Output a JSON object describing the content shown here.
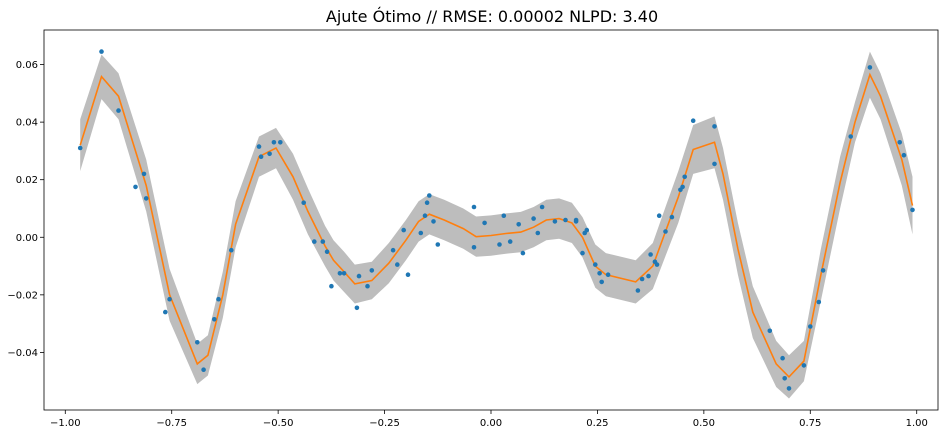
{
  "chart_data": {
    "type": "line",
    "title": "Ajute Ótimo // RMSE: 0.00002 NLPD: 3.40",
    "xlabel": "",
    "ylabel": "",
    "xlim": [
      -1.05,
      1.05
    ],
    "ylim": [
      -0.06,
      0.072
    ],
    "grid": false,
    "x_ticks": [
      -1.0,
      -0.75,
      -0.5,
      -0.25,
      0.0,
      0.25,
      0.5,
      0.75,
      1.0
    ],
    "x_tick_labels": [
      "−1.00",
      "−0.75",
      "−0.50",
      "−0.25",
      "0.00",
      "0.25",
      "0.50",
      "0.75",
      "1.00"
    ],
    "y_ticks": [
      -0.04,
      -0.02,
      0.0,
      0.02,
      0.04,
      0.06
    ],
    "y_tick_labels": [
      "−0.04",
      "−0.02",
      "0.00",
      "0.02",
      "0.04",
      "0.06"
    ],
    "colors": {
      "mean": "#ff7f0e",
      "band": "#bdbdbd",
      "points": "#1f77b4"
    },
    "mean_curve": {
      "x": [
        -0.965,
        -0.915,
        -0.875,
        -0.81,
        -0.755,
        -0.69,
        -0.665,
        -0.63,
        -0.6,
        -0.545,
        -0.505,
        -0.465,
        -0.43,
        -0.39,
        -0.37,
        -0.345,
        -0.32,
        -0.28,
        -0.24,
        -0.2,
        -0.17,
        -0.145,
        -0.11,
        -0.065,
        -0.035,
        0.0,
        0.035,
        0.07,
        0.1,
        0.13,
        0.16,
        0.19,
        0.215,
        0.245,
        0.27,
        0.34,
        0.38,
        0.41,
        0.44,
        0.475,
        0.525,
        0.545,
        0.58,
        0.615,
        0.67,
        0.7,
        0.735,
        0.775,
        0.82,
        0.855,
        0.89,
        0.915,
        0.965,
        0.99
      ],
      "y": [
        0.032,
        0.0558,
        0.049,
        0.018,
        -0.02,
        -0.044,
        -0.041,
        -0.02,
        0.0045,
        0.028,
        0.031,
        0.021,
        0.009,
        -0.003,
        -0.008,
        -0.012,
        -0.0162,
        -0.015,
        -0.009,
        -0.001,
        0.0055,
        0.008,
        0.006,
        0.003,
        0.0002,
        0.0006,
        0.0013,
        0.0018,
        0.0035,
        0.006,
        0.0065,
        0.005,
        0.0,
        -0.01,
        -0.013,
        -0.0155,
        -0.01,
        0.002,
        0.014,
        0.0305,
        0.033,
        0.022,
        -0.004,
        -0.026,
        -0.044,
        -0.0485,
        -0.043,
        -0.013,
        0.019,
        0.04,
        0.0565,
        0.049,
        0.027,
        0.011
      ]
    },
    "confidence_band": {
      "upper": [
        0.041,
        0.0635,
        0.057,
        0.027,
        -0.011,
        -0.037,
        -0.034,
        -0.012,
        0.0125,
        0.035,
        0.038,
        0.029,
        0.017,
        0.004,
        -0.001,
        -0.005,
        -0.0095,
        -0.0085,
        -0.002,
        0.006,
        0.0125,
        0.015,
        0.013,
        0.01,
        0.0072,
        0.0076,
        0.0083,
        0.0088,
        0.0105,
        0.013,
        0.0135,
        0.012,
        0.007,
        -0.0025,
        -0.0055,
        -0.008,
        -0.002,
        0.0105,
        0.023,
        0.039,
        0.042,
        0.031,
        0.005,
        -0.017,
        -0.036,
        -0.041,
        -0.036,
        -0.004,
        0.028,
        0.047,
        0.0645,
        0.057,
        0.036,
        0.021
      ],
      "lower": [
        0.023,
        0.048,
        0.041,
        0.009,
        -0.029,
        -0.051,
        -0.048,
        -0.028,
        -0.0035,
        0.021,
        0.024,
        0.013,
        0.001,
        -0.01,
        -0.015,
        -0.019,
        -0.023,
        -0.0215,
        -0.016,
        -0.008,
        -0.0015,
        0.001,
        -0.001,
        -0.004,
        -0.0068,
        -0.0064,
        -0.0057,
        -0.0052,
        -0.0035,
        -0.001,
        -0.0005,
        -0.002,
        -0.007,
        -0.0175,
        -0.0205,
        -0.023,
        -0.018,
        -0.0065,
        0.005,
        0.022,
        0.024,
        0.013,
        -0.013,
        -0.035,
        -0.052,
        -0.056,
        -0.05,
        -0.022,
        0.01,
        0.033,
        0.0485,
        0.041,
        0.018,
        0.001
      ]
    },
    "observations": {
      "x": [
        -0.965,
        -0.915,
        -0.875,
        -0.835,
        -0.815,
        -0.81,
        -0.765,
        -0.755,
        -0.69,
        -0.675,
        -0.65,
        -0.64,
        -0.61,
        -0.545,
        -0.54,
        -0.52,
        -0.51,
        -0.495,
        -0.44,
        -0.415,
        -0.395,
        -0.385,
        -0.375,
        -0.355,
        -0.345,
        -0.315,
        -0.31,
        -0.29,
        -0.28,
        -0.23,
        -0.22,
        -0.205,
        -0.195,
        -0.165,
        -0.155,
        -0.15,
        -0.145,
        -0.135,
        -0.125,
        -0.04,
        -0.04,
        -0.015,
        0.02,
        0.03,
        0.045,
        0.065,
        0.075,
        0.1,
        0.11,
        0.12,
        0.15,
        0.175,
        0.2,
        0.2,
        0.215,
        0.22,
        0.225,
        0.245,
        0.255,
        0.26,
        0.275,
        0.345,
        0.355,
        0.37,
        0.375,
        0.385,
        0.39,
        0.395,
        0.41,
        0.425,
        0.445,
        0.45,
        0.455,
        0.475,
        0.525,
        0.525,
        0.655,
        0.685,
        0.69,
        0.7,
        0.735,
        0.75,
        0.77,
        0.78,
        0.845,
        0.89,
        0.96,
        0.97,
        0.99
      ],
      "y": [
        0.031,
        0.0645,
        0.044,
        0.0175,
        0.022,
        0.0135,
        -0.026,
        -0.0215,
        -0.0365,
        -0.046,
        -0.0285,
        -0.0215,
        -0.0045,
        0.0315,
        0.028,
        0.029,
        0.033,
        0.033,
        0.012,
        -0.0015,
        -0.0015,
        -0.005,
        -0.017,
        -0.0125,
        -0.0125,
        -0.0245,
        -0.0135,
        -0.017,
        -0.0115,
        -0.0045,
        -0.0095,
        0.0025,
        -0.013,
        0.0015,
        0.0075,
        0.012,
        0.0145,
        0.0055,
        -0.0025,
        0.0105,
        -0.0035,
        0.005,
        -0.0025,
        0.0075,
        -0.0015,
        0.0045,
        -0.0055,
        0.0065,
        0.0015,
        0.0105,
        0.0055,
        0.006,
        0.006,
        0.0055,
        -0.0055,
        0.0015,
        0.0025,
        -0.0095,
        -0.0125,
        -0.0155,
        -0.013,
        -0.0185,
        -0.0145,
        -0.0135,
        -0.006,
        -0.0085,
        -0.0095,
        0.0075,
        0.002,
        0.007,
        0.0165,
        0.0175,
        0.021,
        0.0405,
        0.0385,
        0.0255,
        -0.0325,
        -0.042,
        -0.049,
        -0.0525,
        -0.0445,
        -0.031,
        -0.0225,
        -0.0115,
        0.035,
        0.059,
        0.033,
        0.0285,
        0.0095
      ]
    }
  }
}
